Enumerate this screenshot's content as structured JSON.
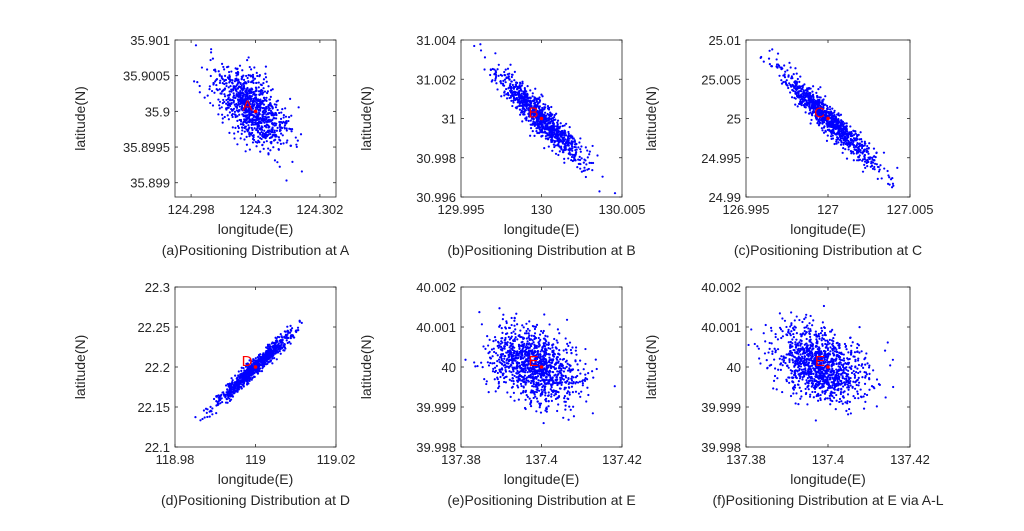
{
  "chart_data": [
    {
      "type": "scatter",
      "caption": "(a)Positioning Distribution at A",
      "xlabel": "longitude(E)",
      "ylabel": "latitude(N)",
      "xlim": [
        124.2975,
        124.3025
      ],
      "ylim": [
        35.8988,
        35.901
      ],
      "xticks": [
        {
          "value": 124.298,
          "label": "124.298"
        },
        {
          "value": 124.3,
          "label": "124.3"
        },
        {
          "value": 124.302,
          "label": "124.302"
        }
      ],
      "yticks": [
        {
          "value": 35.899,
          "label": "35.899"
        },
        {
          "value": 35.8995,
          "label": "35.8995"
        },
        {
          "value": 35.9,
          "label": "35.9"
        },
        {
          "value": 35.9005,
          "label": "35.9005"
        },
        {
          "value": 35.901,
          "label": "35.901"
        }
      ],
      "reference_point": {
        "label": "A",
        "x": 124.3,
        "y": 35.9
      },
      "distribution": {
        "center": [
          124.29985,
          35.90005
        ],
        "std_x": 0.00055,
        "std_y": 0.00028,
        "correlation": -0.55,
        "count": 1000
      },
      "point_color": "#0000ff",
      "reference_color": "#ff0000",
      "grid": false
    },
    {
      "type": "scatter",
      "caption": "(b)Positioning Distribution at B",
      "xlabel": "longitude(E)",
      "ylabel": "latitude(N)",
      "xlim": [
        129.995,
        130.005
      ],
      "ylim": [
        30.996,
        31.004
      ],
      "xticks": [
        {
          "value": 129.995,
          "label": "129.995"
        },
        {
          "value": 130,
          "label": "130"
        },
        {
          "value": 130.005,
          "label": "130.005"
        }
      ],
      "yticks": [
        {
          "value": 30.996,
          "label": "30.996"
        },
        {
          "value": 30.998,
          "label": "30.998"
        },
        {
          "value": 31,
          "label": "31"
        },
        {
          "value": 31.002,
          "label": "31.002"
        },
        {
          "value": 31.004,
          "label": "31.004"
        }
      ],
      "reference_point": {
        "label": "B",
        "x": 130,
        "y": 31
      },
      "distribution": {
        "center": [
          130,
          31
        ],
        "std_x": 0.0013,
        "std_y": 0.0011,
        "correlation": -0.92,
        "count": 1000
      },
      "point_color": "#0000ff",
      "reference_color": "#ff0000",
      "grid": false
    },
    {
      "type": "scatter",
      "caption": "(c)Positioning Distribution at C",
      "xlabel": "longitude(E)",
      "ylabel": "latitude(N)",
      "xlim": [
        126.995,
        127.005
      ],
      "ylim": [
        24.99,
        25.01
      ],
      "xticks": [
        {
          "value": 126.995,
          "label": "126.995"
        },
        {
          "value": 127,
          "label": "127"
        },
        {
          "value": 127.005,
          "label": "127.005"
        }
      ],
      "yticks": [
        {
          "value": 24.99,
          "label": "24.99"
        },
        {
          "value": 24.995,
          "label": "24.995"
        },
        {
          "value": 25,
          "label": "25"
        },
        {
          "value": 25.005,
          "label": "25.005"
        },
        {
          "value": 25.01,
          "label": "25.01"
        }
      ],
      "reference_point": {
        "label": "C",
        "x": 127,
        "y": 25
      },
      "distribution": {
        "center": [
          127,
          25
        ],
        "std_x": 0.0014,
        "std_y": 0.0029,
        "correlation": -0.95,
        "count": 1000
      },
      "point_color": "#0000ff",
      "reference_color": "#ff0000",
      "grid": false
    },
    {
      "type": "scatter",
      "caption": "(d)Positioning Distribution at D",
      "xlabel": "longitude(E)",
      "ylabel": "latitude(N)",
      "xlim": [
        118.98,
        119.02
      ],
      "ylim": [
        22.1,
        22.3
      ],
      "xticks": [
        {
          "value": 118.98,
          "label": "118.98"
        },
        {
          "value": 119,
          "label": "119"
        },
        {
          "value": 119.02,
          "label": "119.02"
        }
      ],
      "yticks": [
        {
          "value": 22.1,
          "label": "22.1"
        },
        {
          "value": 22.15,
          "label": "22.15"
        },
        {
          "value": 22.2,
          "label": "22.2"
        },
        {
          "value": 22.25,
          "label": "22.25"
        },
        {
          "value": 22.3,
          "label": "22.3"
        }
      ],
      "reference_point": {
        "label": "D",
        "x": 119,
        "y": 22.2
      },
      "distribution": {
        "center": [
          119,
          22.2
        ],
        "std_x": 0.0045,
        "std_y": 0.022,
        "correlation": 0.97,
        "count": 1000
      },
      "point_color": "#0000ff",
      "reference_color": "#ff0000",
      "grid": false
    },
    {
      "type": "scatter",
      "caption": "(e)Positioning Distribution at E",
      "xlabel": "longitude(E)",
      "ylabel": "latitude(N)",
      "xlim": [
        137.38,
        137.42
      ],
      "ylim": [
        39.998,
        40.002
      ],
      "xticks": [
        {
          "value": 137.38,
          "label": "137.38"
        },
        {
          "value": 137.4,
          "label": "137.4"
        },
        {
          "value": 137.42,
          "label": "137.42"
        }
      ],
      "yticks": [
        {
          "value": 39.998,
          "label": "39.998"
        },
        {
          "value": 39.999,
          "label": "39.999"
        },
        {
          "value": 40,
          "label": "40"
        },
        {
          "value": 40.001,
          "label": "40.001"
        },
        {
          "value": 40.002,
          "label": "40.002"
        }
      ],
      "reference_point": {
        "label": "E",
        "x": 137.4,
        "y": 40
      },
      "distribution": {
        "center": [
          137.398,
          40.00005
        ],
        "std_x": 0.0055,
        "std_y": 0.00045,
        "correlation": -0.3,
        "count": 1200
      },
      "point_color": "#0000ff",
      "reference_color": "#ff0000",
      "grid": false
    },
    {
      "type": "scatter",
      "caption": "(f)Positioning Distribution at E via A-L",
      "xlabel": "longitude(E)",
      "ylabel": "latitude(N)",
      "xlim": [
        137.38,
        137.42
      ],
      "ylim": [
        39.998,
        40.002
      ],
      "xticks": [
        {
          "value": 137.38,
          "label": "137.38"
        },
        {
          "value": 137.4,
          "label": "137.4"
        },
        {
          "value": 137.42,
          "label": "137.42"
        }
      ],
      "yticks": [
        {
          "value": 39.998,
          "label": "39.998"
        },
        {
          "value": 39.999,
          "label": "39.999"
        },
        {
          "value": 40,
          "label": "40"
        },
        {
          "value": 40.001,
          "label": "40.001"
        },
        {
          "value": 40.002,
          "label": "40.002"
        }
      ],
      "reference_point": {
        "label": "E",
        "x": 137.4,
        "y": 40
      },
      "distribution": {
        "center": [
          137.398,
          40.00005
        ],
        "std_x": 0.0055,
        "std_y": 0.00045,
        "correlation": -0.3,
        "count": 1200
      },
      "point_color": "#0000ff",
      "reference_color": "#ff0000",
      "grid": false
    }
  ]
}
